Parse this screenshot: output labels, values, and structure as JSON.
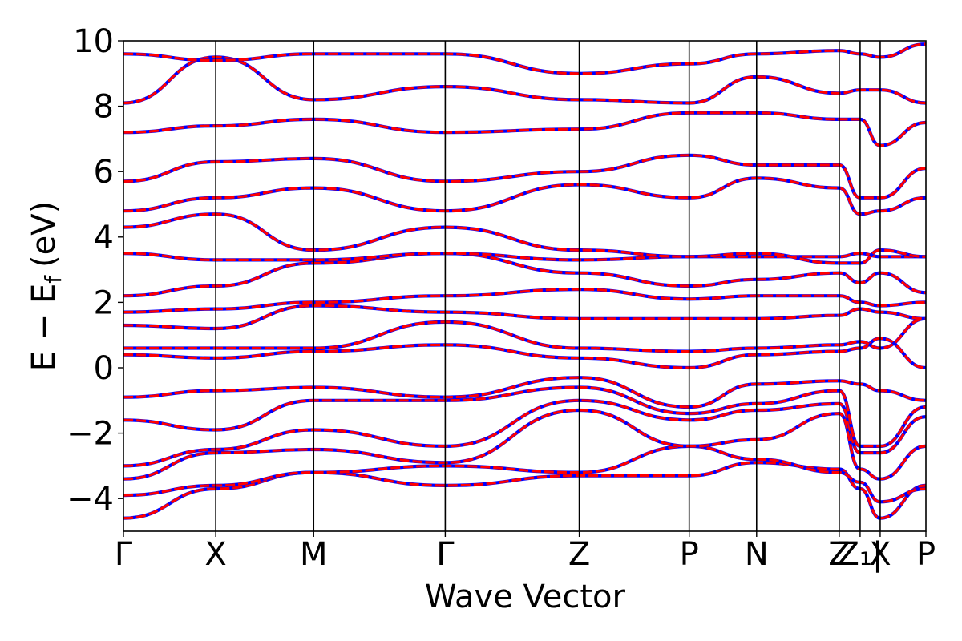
{
  "chart_data": {
    "type": "line",
    "title": "",
    "xlabel": "Wave Vector",
    "ylabel": "E − E",
    "ylabel_sub": "f",
    "ylabel_unit": "(eV)",
    "ylim": [
      -5,
      10
    ],
    "yticks": [
      {
        "value": 10,
        "label": "10"
      },
      {
        "value": 8,
        "label": "8"
      },
      {
        "value": 6,
        "label": "6"
      },
      {
        "value": 4,
        "label": "4"
      },
      {
        "value": 2,
        "label": "2"
      },
      {
        "value": 0,
        "label": "0"
      },
      {
        "value": -2,
        "label": "−2"
      },
      {
        "value": -4,
        "label": "−4"
      }
    ],
    "xlim": [
      0,
      10.0
    ],
    "kpoints": [
      {
        "label": "Γ",
        "x": 0.0
      },
      {
        "label": "X",
        "x": 1.15
      },
      {
        "label": "M",
        "x": 2.37
      },
      {
        "label": "Γ",
        "x": 4.01
      },
      {
        "label": "Z",
        "x": 5.68
      },
      {
        "label": "P",
        "x": 7.05
      },
      {
        "label": "N",
        "x": 7.89
      },
      {
        "label": "Z",
        "x": 8.92
      },
      {
        "label": "Z₁|",
        "x": 9.18
      },
      {
        "label": "X",
        "x": 9.43
      },
      {
        "label": "P",
        "x": 10.0
      }
    ],
    "grid": false,
    "line_colors": {
      "base": "#0000ff",
      "overlay": "#ff0000"
    },
    "series": [
      {
        "x": [
          0,
          1.15,
          2.37,
          4.01,
          5.68,
          7.05,
          7.89,
          8.92,
          9.18,
          9.43,
          10
        ],
        "y": [
          -4.6,
          -3.7,
          -3.2,
          -3.6,
          -3.3,
          -3.3,
          -2.9,
          -3.1,
          -3.7,
          -4.6,
          -3.6
        ]
      },
      {
        "x": [
          0,
          1.15,
          2.37,
          4.01,
          5.68,
          7.05,
          7.89,
          8.92,
          9.18,
          9.43,
          10
        ],
        "y": [
          -3.9,
          -3.6,
          -3.2,
          -3.0,
          -3.2,
          -2.4,
          -2.8,
          -3.2,
          -3.5,
          -4.1,
          -3.7
        ]
      },
      {
        "x": [
          0,
          1.15,
          2.37,
          4.01,
          5.68,
          7.05,
          7.89,
          8.92,
          9.18,
          9.43,
          10
        ],
        "y": [
          -3.4,
          -2.6,
          -2.5,
          -2.9,
          -1.3,
          -2.4,
          -2.2,
          -1.4,
          -3.1,
          -3.4,
          -2.4
        ]
      },
      {
        "x": [
          0,
          1.15,
          2.37,
          4.01,
          5.68,
          7.05,
          7.89,
          8.92,
          9.18,
          9.43,
          10
        ],
        "y": [
          -3.0,
          -2.5,
          -1.9,
          -2.4,
          -1.0,
          -1.6,
          -1.3,
          -1.1,
          -2.6,
          -2.6,
          -1.5
        ]
      },
      {
        "x": [
          0,
          1.15,
          2.37,
          4.01,
          5.68,
          7.05,
          7.89,
          8.92,
          9.18,
          9.43,
          10
        ],
        "y": [
          -1.6,
          -1.9,
          -1.0,
          -1.0,
          -0.6,
          -1.4,
          -1.1,
          -0.7,
          -2.4,
          -2.4,
          -1.2
        ]
      },
      {
        "x": [
          0,
          1.15,
          2.37,
          4.01,
          5.68,
          7.05,
          7.89,
          8.92,
          9.18,
          9.43,
          10
        ],
        "y": [
          -0.9,
          -0.7,
          -0.6,
          -0.9,
          -0.3,
          -1.2,
          -0.5,
          -0.4,
          -0.5,
          -0.7,
          -1.0
        ]
      },
      {
        "x": [
          0,
          1.15,
          2.37,
          4.01,
          5.68,
          7.05,
          7.89,
          8.92,
          9.18,
          9.43,
          10
        ],
        "y": [
          0.4,
          0.3,
          0.5,
          0.7,
          0.3,
          0.0,
          0.4,
          0.5,
          0.6,
          0.9,
          0.0
        ]
      },
      {
        "x": [
          0,
          1.15,
          2.37,
          4.01,
          5.68,
          7.05,
          7.89,
          8.92,
          9.18,
          9.43,
          10
        ],
        "y": [
          0.6,
          0.6,
          0.6,
          1.4,
          0.6,
          0.5,
          0.6,
          0.7,
          0.8,
          0.6,
          1.5
        ]
      },
      {
        "x": [
          0,
          1.15,
          2.37,
          4.01,
          5.68,
          7.05,
          7.89,
          8.92,
          9.18,
          9.43,
          10
        ],
        "y": [
          1.3,
          1.2,
          1.9,
          1.7,
          1.5,
          1.5,
          1.5,
          1.6,
          1.8,
          1.7,
          1.5
        ]
      },
      {
        "x": [
          0,
          1.15,
          2.37,
          4.01,
          5.68,
          7.05,
          7.89,
          8.92,
          9.18,
          9.43,
          10
        ],
        "y": [
          1.7,
          1.8,
          2.0,
          2.2,
          2.4,
          2.1,
          2.2,
          2.2,
          2.0,
          1.9,
          2.0
        ]
      },
      {
        "x": [
          0,
          1.15,
          2.37,
          4.01,
          5.68,
          7.05,
          7.89,
          8.92,
          9.18,
          9.43,
          10
        ],
        "y": [
          2.2,
          2.5,
          3.2,
          3.5,
          2.9,
          2.5,
          2.7,
          2.9,
          2.6,
          2.9,
          2.3
        ]
      },
      {
        "x": [
          0,
          1.15,
          2.37,
          4.01,
          5.68,
          7.05,
          7.89,
          8.92,
          9.18,
          9.43,
          10
        ],
        "y": [
          3.5,
          3.3,
          3.3,
          3.5,
          3.3,
          3.4,
          3.4,
          3.4,
          3.5,
          3.4,
          3.4
        ]
      },
      {
        "x": [
          0,
          1.15,
          2.37,
          4.01,
          5.68,
          7.05,
          7.89,
          8.92,
          9.18,
          9.43,
          10
        ],
        "y": [
          4.3,
          4.7,
          3.6,
          4.3,
          3.6,
          3.4,
          3.5,
          3.2,
          3.2,
          3.6,
          3.4
        ]
      },
      {
        "x": [
          0,
          1.15,
          2.37,
          4.01,
          5.68,
          7.05,
          7.89,
          8.92,
          9.18,
          9.43,
          10
        ],
        "y": [
          4.8,
          5.2,
          5.5,
          4.8,
          5.6,
          5.2,
          5.8,
          5.5,
          4.7,
          4.8,
          5.2
        ]
      },
      {
        "x": [
          0,
          1.15,
          2.37,
          4.01,
          5.68,
          7.05,
          7.89,
          8.92,
          9.18,
          9.43,
          10
        ],
        "y": [
          5.7,
          6.3,
          6.4,
          5.7,
          6.0,
          6.5,
          6.2,
          6.2,
          5.2,
          5.2,
          6.1
        ]
      },
      {
        "x": [
          0,
          1.15,
          2.37,
          4.01,
          5.68,
          7.05,
          7.89,
          8.92,
          9.18,
          9.43,
          10
        ],
        "y": [
          7.2,
          7.4,
          7.6,
          7.2,
          7.3,
          7.8,
          7.8,
          7.6,
          7.6,
          6.8,
          7.5
        ]
      },
      {
        "x": [
          0,
          1.15,
          2.37,
          4.01,
          5.68,
          7.05,
          7.89,
          8.92,
          9.18,
          9.43,
          10
        ],
        "y": [
          8.1,
          9.5,
          8.2,
          8.6,
          8.2,
          8.1,
          8.9,
          8.4,
          8.5,
          8.5,
          8.1
        ]
      },
      {
        "x": [
          0,
          1.15,
          2.37,
          4.01,
          5.68,
          7.05,
          7.89,
          8.92,
          9.18,
          9.43,
          10
        ],
        "y": [
          9.6,
          9.4,
          9.6,
          9.6,
          9.0,
          9.3,
          9.6,
          9.7,
          9.6,
          9.5,
          9.9
        ]
      }
    ]
  }
}
